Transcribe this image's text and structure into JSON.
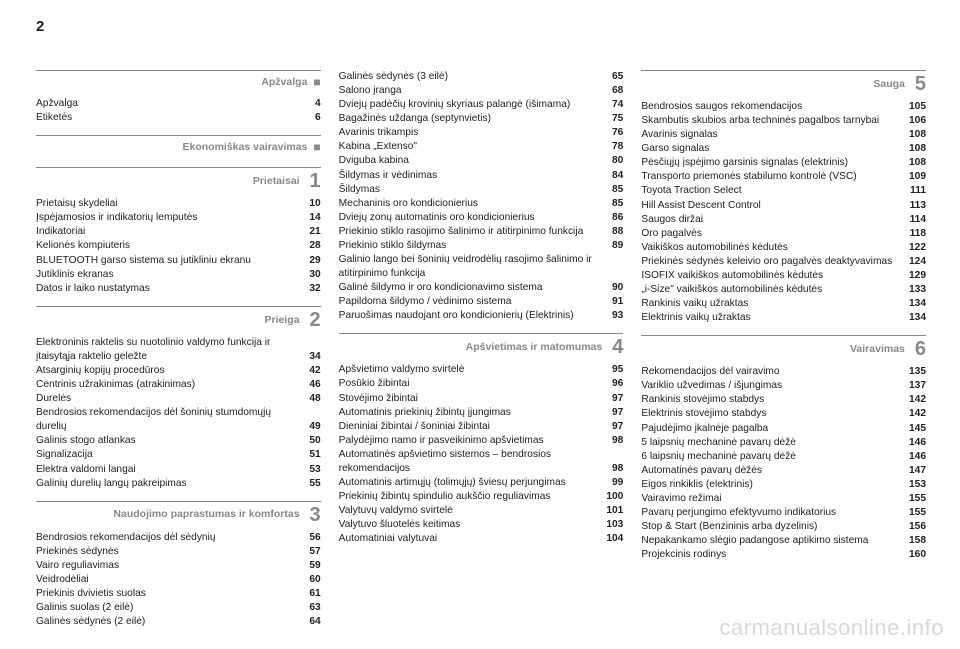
{
  "page_number": "2",
  "watermark": "carmanualsonline.info",
  "columns": [
    {
      "sections": [
        {
          "title": "Apžvalga",
          "marker": "■",
          "number": "",
          "entries": [
            {
              "label": "Apžvalga",
              "page": "4"
            },
            {
              "label": "Etiketės",
              "page": "6"
            }
          ]
        },
        {
          "title": "Ekonomiškas vairavimas",
          "marker": "■",
          "number": "",
          "entries": []
        },
        {
          "title": "Prietaisai",
          "marker": "",
          "number": "1",
          "entries": [
            {
              "label": "Prietaisų skydeliai",
              "page": "10"
            },
            {
              "label": "Įspėjamosios ir indikatorių lemputės",
              "page": "14"
            },
            {
              "label": "Indikatoriai",
              "page": "21"
            },
            {
              "label": "Kelionės kompiuteris",
              "page": "28"
            },
            {
              "label": "BLUETOOTH garso sistema su jutikliniu ekranu",
              "page": "29"
            },
            {
              "label": "Jutiklinis ekranas",
              "page": "30"
            },
            {
              "label": "Datos ir laiko nustatymas",
              "page": "32"
            }
          ]
        },
        {
          "title": "Prieiga",
          "marker": "",
          "number": "2",
          "entries": [
            {
              "label": "Elektroninis raktelis su nuotolinio valdymo funkcija ir įtaisytąja raktelio geležte",
              "page": "34"
            },
            {
              "label": "Atsarginių kopijų procedūros",
              "page": "42"
            },
            {
              "label": "Centrinis užrakinimas (atrakinimas)",
              "page": "46"
            },
            {
              "label": "Durelės",
              "page": "48"
            },
            {
              "label": "Bendrosios rekomendacijos dėl šoninių stumdomųjų durelių",
              "page": "49"
            },
            {
              "label": "Galinis stogo atlankas",
              "page": "50"
            },
            {
              "label": "Signalizacija",
              "page": "51"
            },
            {
              "label": "Elektra valdomi langai",
              "page": "53"
            },
            {
              "label": "Galinių durelių langų pakreipimas",
              "page": "55"
            }
          ]
        },
        {
          "title": "Naudojimo paprastumas ir komfortas",
          "marker": "",
          "number": "3",
          "entries": [
            {
              "label": "Bendrosios rekomendacijos dėl sėdynių",
              "page": "56"
            },
            {
              "label": "Priekinės sėdynės",
              "page": "57"
            },
            {
              "label": "Vairo reguliavimas",
              "page": "59"
            },
            {
              "label": "Veidrodėliai",
              "page": "60"
            },
            {
              "label": "Priekinis dvivietis suolas",
              "page": "61"
            },
            {
              "label": "Galinis suolas (2 eilė)",
              "page": "63"
            },
            {
              "label": "Galinės sėdynės (2 eilė)",
              "page": "64"
            }
          ]
        }
      ]
    },
    {
      "sections": [
        {
          "title": "",
          "marker": "",
          "number": "",
          "noheader": true,
          "entries": [
            {
              "label": "Galinės sėdynės (3 eilė)",
              "page": "65"
            },
            {
              "label": "Salono įranga",
              "page": "68"
            },
            {
              "label": "Dviejų padėčių krovinių skyriaus palangė (išimama)",
              "page": "74"
            },
            {
              "label": "Bagažinės uždanga (septynvietis)",
              "page": "75"
            },
            {
              "label": "Avarinis trikampis",
              "page": "76"
            },
            {
              "label": "Kabina „Extenso\"",
              "page": "78"
            },
            {
              "label": "Dviguba kabina",
              "page": "80"
            },
            {
              "label": "Šildymas ir vėdinimas",
              "page": "84"
            },
            {
              "label": "Šildymas",
              "page": "85"
            },
            {
              "label": "Mechaninis oro kondicionierius",
              "page": "85"
            },
            {
              "label": "Dviejų zonų automatinis oro kondicionierius",
              "page": "86"
            },
            {
              "label": "Priekinio stiklo rasojimo šalinimo ir atitirpinimo funkcija",
              "page": "88"
            },
            {
              "label": "Priekinio stiklo šildymas",
              "page": "89"
            },
            {
              "label": "Galinio lango bei šoninių veidrodėlių rasojimo šalinimo ir atitirpinimo funkcija",
              "page": ""
            },
            {
              "label": "Galinė šildymo ir oro kondicionavimo sistema",
              "page": "90"
            },
            {
              "label": "Papildoma šildymo / vėdinimo sistema",
              "page": "91"
            },
            {
              "label": "Paruošimas naudojant oro kondicionierių (Elektrinis)",
              "page": "93"
            }
          ]
        },
        {
          "title": "Apšvietimas ir matomumas",
          "marker": "",
          "number": "4",
          "entries": [
            {
              "label": "Apšvietimo valdymo svirtelė",
              "page": "95"
            },
            {
              "label": "Posūkio žibintai",
              "page": "96"
            },
            {
              "label": "Stovėjimo žibintai",
              "page": "97"
            },
            {
              "label": "Automatinis priekinių žibintų įjungimas",
              "page": "97"
            },
            {
              "label": "Dieniniai žibintai / šoniniai žibintai",
              "page": "97"
            },
            {
              "label": "Palydėjimo namo ir pasveikinimo apšvietimas",
              "page": "98"
            },
            {
              "label": "Automatinės apšvietimo sistemos – bendrosios rekomendacijos",
              "page": "98"
            },
            {
              "label": "Automatinis artimųjų (tolimųjų) šviesų perjungimas",
              "page": "99"
            },
            {
              "label": "Priekinių žibintų spindulio aukščio reguliavimas",
              "page": "100"
            },
            {
              "label": "Valytuvų valdymo svirtelė",
              "page": "101"
            },
            {
              "label": "Valytuvo šluotelės keitimas",
              "page": "103"
            },
            {
              "label": "Automatiniai valytuvai",
              "page": "104"
            }
          ]
        }
      ]
    },
    {
      "sections": [
        {
          "title": "Sauga",
          "marker": "",
          "number": "5",
          "entries": [
            {
              "label": "Bendrosios saugos rekomendacijos",
              "page": "105"
            },
            {
              "label": "Skambutis skubios arba techninės pagalbos tarnybai",
              "page": "106"
            },
            {
              "label": "Avarinis signalas",
              "page": "108"
            },
            {
              "label": "Garso signalas",
              "page": "108"
            },
            {
              "label": "Pėsčiųjų įspėjimo garsinis signalas (elektrinis)",
              "page": "108"
            },
            {
              "label": "Transporto priemonės stabilumo kontrolė (VSC)",
              "page": "109"
            },
            {
              "label": "Toyota Traction Select",
              "page": "111"
            },
            {
              "label": "Hill Assist Descent Control",
              "page": "113"
            },
            {
              "label": "Saugos diržai",
              "page": "114"
            },
            {
              "label": "Oro pagalvės",
              "page": "118"
            },
            {
              "label": "Vaikiškos automobilinės kėdutės",
              "page": "122"
            },
            {
              "label": "Priekinės sėdynės keleivio oro pagalvės deaktyvavimas",
              "page": "124"
            },
            {
              "label": "ISOFIX vaikiškos automobilinės kėdutės",
              "page": "129"
            },
            {
              "label": "„i-Size\" vaikiškos automobilinės kėdutės",
              "page": "133"
            },
            {
              "label": "Rankinis vaikų užraktas",
              "page": "134"
            },
            {
              "label": "Elektrinis vaikų užraktas",
              "page": "134"
            }
          ]
        },
        {
          "title": "Vairavimas",
          "marker": "",
          "number": "6",
          "entries": [
            {
              "label": "Rekomendacijos dėl vairavimo",
              "page": "135"
            },
            {
              "label": "Variklio užvedimas / išjungimas",
              "page": "137"
            },
            {
              "label": "Rankinis stovėjimo stabdys",
              "page": "142"
            },
            {
              "label": "Elektrinis stovėjimo stabdys",
              "page": "142"
            },
            {
              "label": "Pajudėjimo įkalnėje pagalba",
              "page": "145"
            },
            {
              "label": "5 laipsnių mechaninė pavarų dėžė",
              "page": "146"
            },
            {
              "label": "6 laipsnių mechaninė pavarų dėžė",
              "page": "146"
            },
            {
              "label": "Automatinės pavarų dėžės",
              "page": "147"
            },
            {
              "label": "Eigos rinkiklis (elektrinis)",
              "page": "153"
            },
            {
              "label": "Vairavimo režimai",
              "page": "155"
            },
            {
              "label": "Pavarų perjungimo efektyvumo indikatorius",
              "page": "155"
            },
            {
              "label": "Stop & Start (Benzininis arba dyzelinis)",
              "page": "156"
            },
            {
              "label": "Nepakankamo slėgio padangose aptikimo sistema",
              "page": "158"
            },
            {
              "label": "Projekcinis rodinys",
              "page": "160"
            }
          ]
        }
      ]
    }
  ]
}
